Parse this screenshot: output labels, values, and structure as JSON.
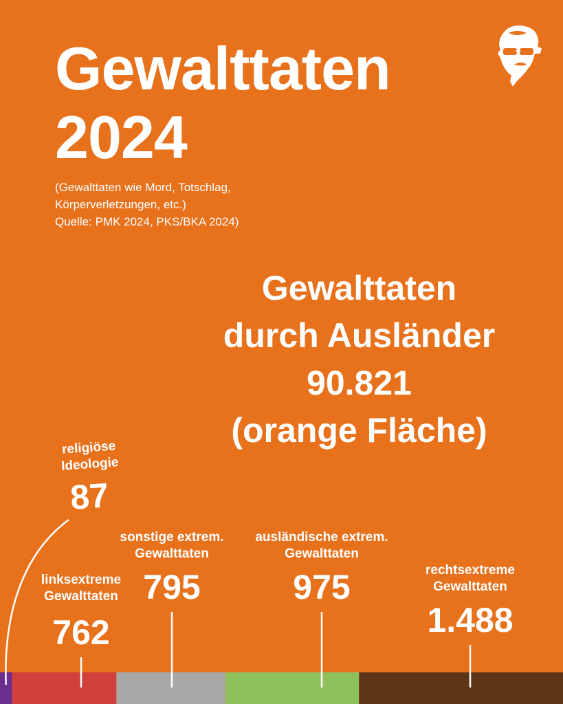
{
  "header": {
    "title_line1": "Gewalttaten",
    "title_line2": "2024",
    "subtitle_line1": "(Gewalttaten wie Mord, Totschlag,",
    "subtitle_line2": "Körperverletzungen, etc.)",
    "subtitle_line3": "Quelle: PMK 2024, PKS/BKA 2024)"
  },
  "center": {
    "line1": "Gewalttaten",
    "line2": "durch Ausländer",
    "line3": "90.821",
    "line4": "(orange Fläche)"
  },
  "chart_data": {
    "type": "bar",
    "orientation": "horizontal-stacked",
    "unit": "Gewalttaten",
    "categories": [
      {
        "label_line1": "religiöse",
        "label_line2": "Ideologie",
        "value": 87,
        "value_label": "87",
        "color": "#6a2e8e"
      },
      {
        "label_line1": "linksextreme",
        "label_line2": "Gewalttaten",
        "value": 762,
        "value_label": "762",
        "color": "#d1403a"
      },
      {
        "label_line1": "sonstige extrem.",
        "label_line2": "Gewalttaten",
        "value": 795,
        "value_label": "795",
        "color": "#a8a8a8"
      },
      {
        "label_line1": "ausländische extrem.",
        "label_line2": "Gewalttaten",
        "value": 975,
        "value_label": "975",
        "color": "#8ec15b"
      },
      {
        "label_line1": "rechtsextreme",
        "label_line2": "Gewalttaten",
        "value": 1488,
        "value_label": "1.488",
        "color": "#5c3617"
      }
    ],
    "background_area": {
      "value": 90821,
      "color": "#e8711c"
    }
  },
  "colors": {
    "background": "#e8711c",
    "text": "#ffffff"
  },
  "icons": {
    "logo": "bearded-man-with-glasses-logo"
  }
}
